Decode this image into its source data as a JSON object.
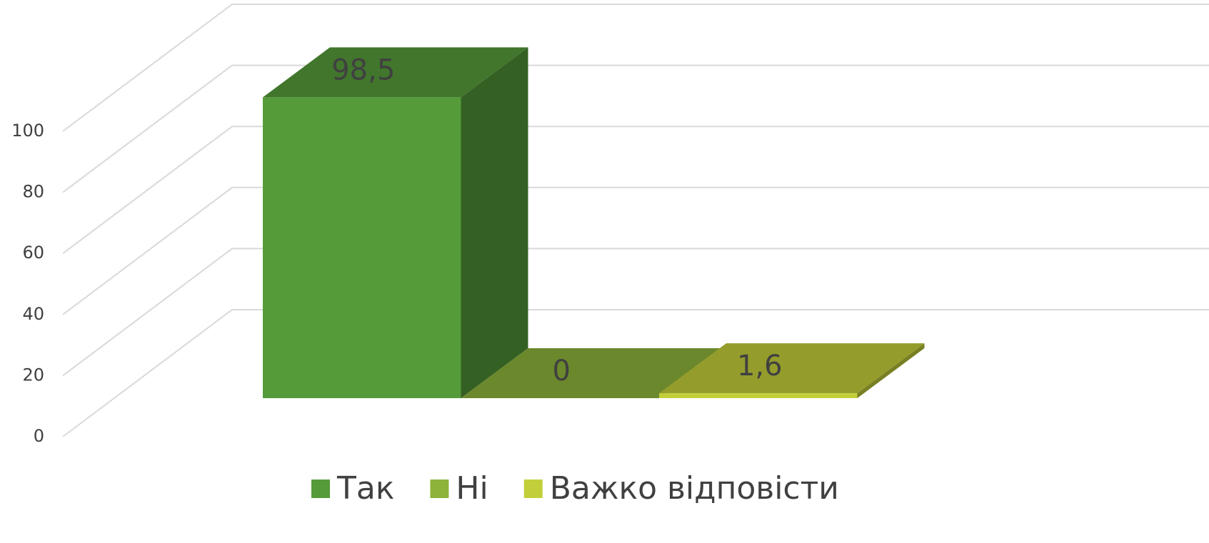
{
  "chart_data": {
    "type": "bar3d",
    "series": [
      {
        "name": "Так",
        "color": "#559b3a",
        "values": [
          98.5
        ],
        "value_labels": [
          "98,5"
        ]
      },
      {
        "name": "Ні",
        "color": "#8db33a",
        "values": [
          0
        ],
        "value_labels": [
          "0"
        ]
      },
      {
        "name": "Важко відповісти",
        "color": "#c3cf3a",
        "values": [
          1.6
        ],
        "value_labels": [
          "1,6"
        ]
      }
    ],
    "ylim": [
      0,
      100
    ],
    "yticks": [
      0,
      20,
      40,
      60,
      80,
      100
    ],
    "grid": true,
    "legend": "bottom"
  }
}
